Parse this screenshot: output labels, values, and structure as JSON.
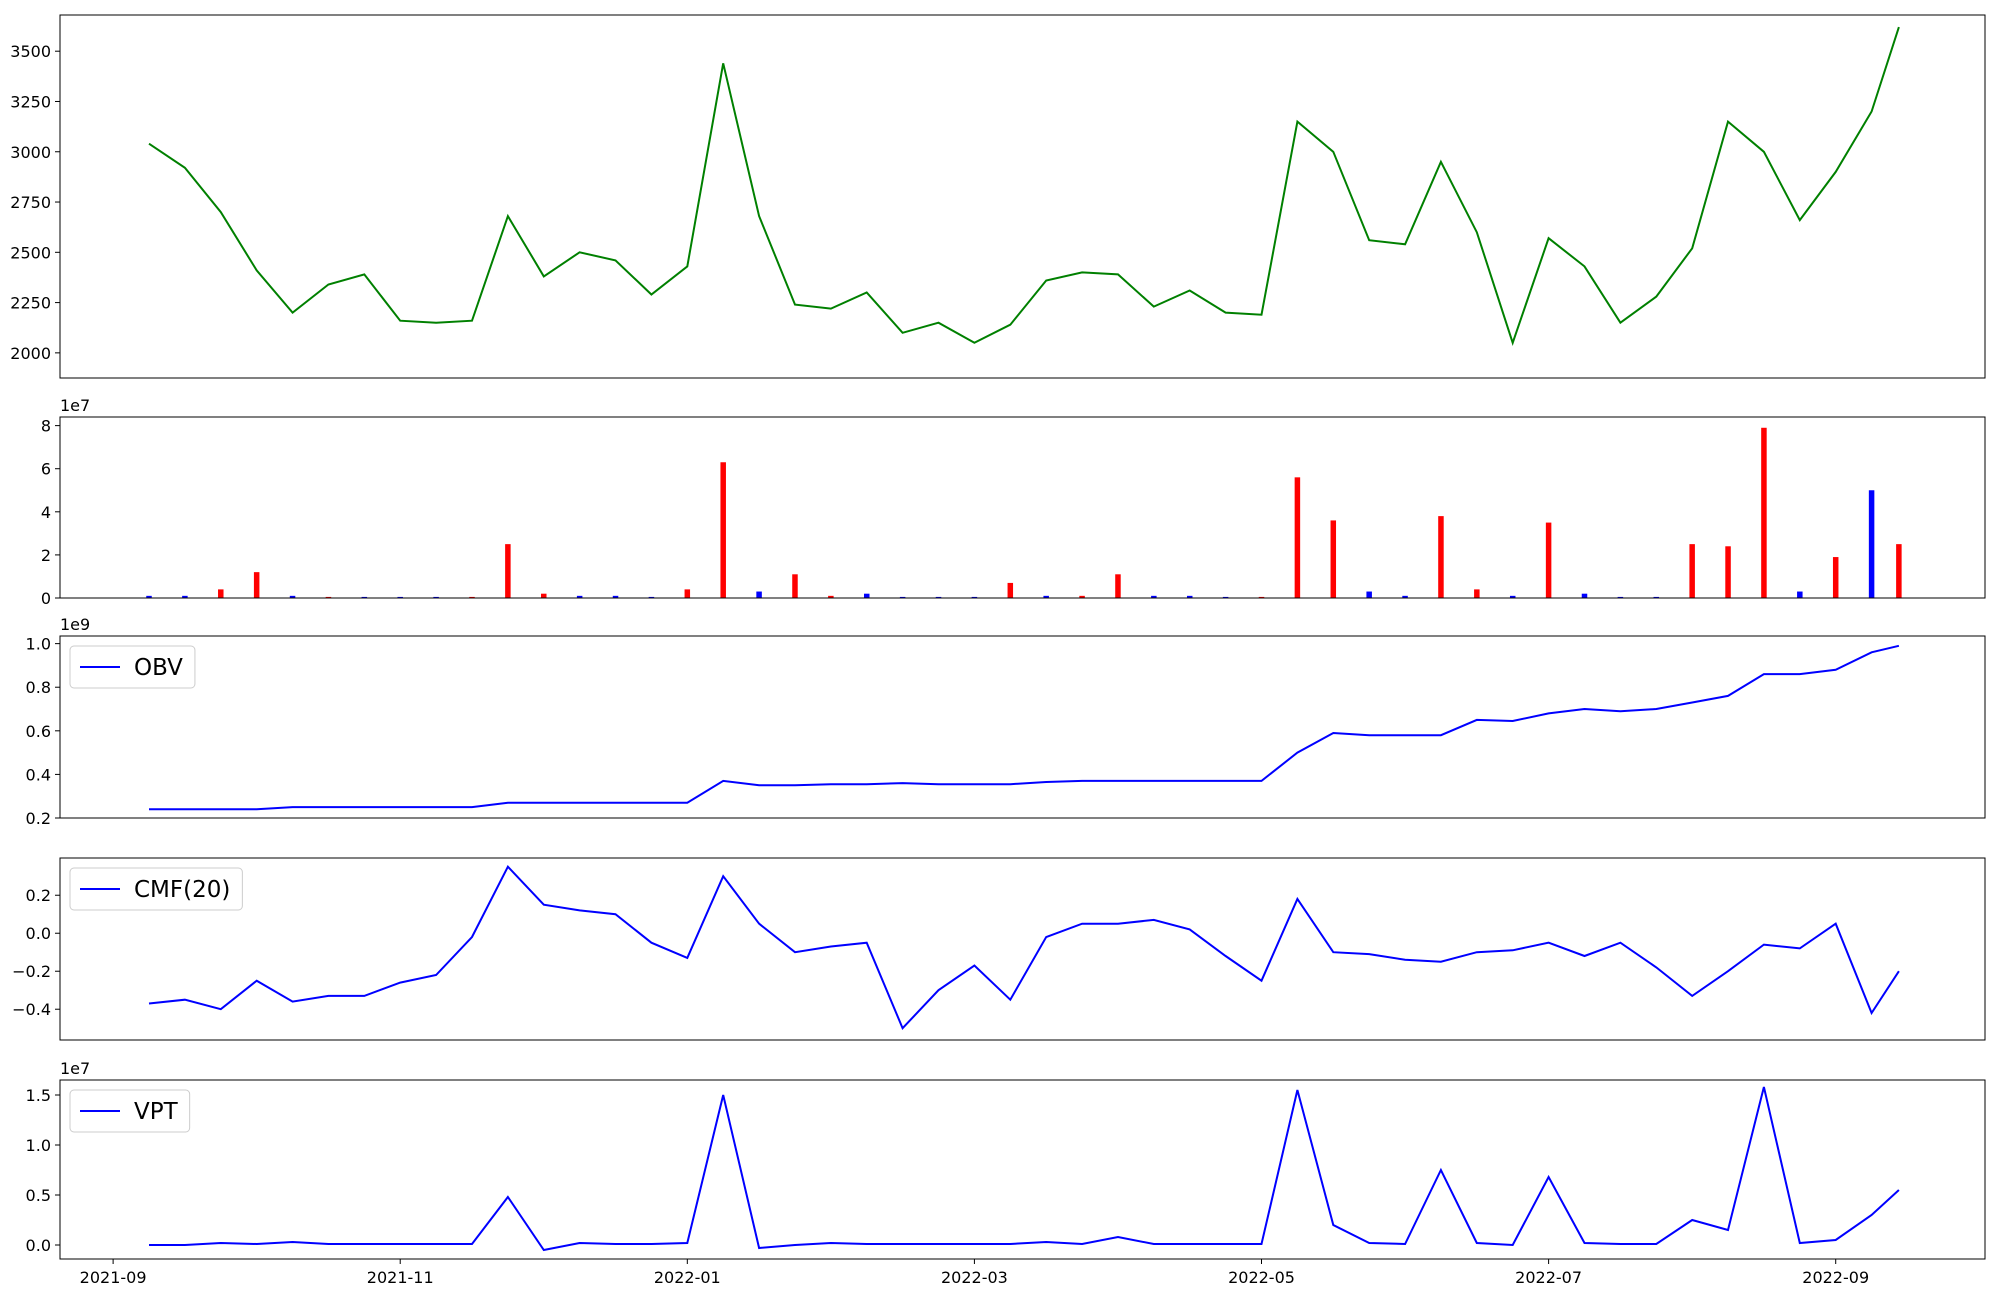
{
  "chart_data": [
    {
      "type": "line",
      "color": "#008000",
      "x": [
        0.25,
        0.5,
        0.75,
        1.0,
        1.25,
        1.5,
        1.75,
        2.0,
        2.25,
        2.5,
        2.75,
        3.0,
        3.25,
        3.5,
        3.75,
        4.0,
        4.25,
        4.5,
        4.75,
        5.0,
        5.25,
        5.5,
        5.75,
        6.0,
        6.25,
        6.5,
        6.75,
        7.0,
        7.25,
        7.5,
        7.75,
        8.0,
        8.25,
        8.5,
        8.75,
        9.0,
        9.25,
        9.5,
        9.75,
        10.0,
        10.25,
        10.5,
        10.75,
        11.0,
        11.25,
        11.5,
        11.75,
        12.0,
        12.25,
        12.44
      ],
      "values": [
        3040,
        2920,
        2700,
        2410,
        2200,
        2340,
        2390,
        2160,
        2150,
        2160,
        2680,
        2380,
        2500,
        2460,
        2290,
        2430,
        3440,
        2680,
        2240,
        2220,
        2300,
        2100,
        2150,
        2050,
        2140,
        2360,
        2400,
        2390,
        2230,
        2310,
        2200,
        2190,
        3150,
        3000,
        2560,
        2540,
        2950,
        2600,
        2050,
        2570,
        2430,
        2150,
        2280,
        2520,
        3150,
        3000,
        2660,
        2900,
        3200,
        3620
      ],
      "xlim": [
        -0.37,
        13.04
      ],
      "ylim": [
        1875,
        3680
      ],
      "yticks": [
        2000,
        2250,
        2500,
        2750,
        3000,
        3250,
        3500
      ]
    },
    {
      "type": "bar",
      "offset_label": "1e7",
      "x": [
        0.25,
        0.5,
        0.75,
        1.0,
        1.25,
        1.5,
        1.75,
        2.0,
        2.25,
        2.5,
        2.75,
        3.0,
        3.25,
        3.5,
        3.75,
        4.0,
        4.25,
        4.5,
        4.75,
        5.0,
        5.25,
        5.5,
        5.75,
        6.0,
        6.25,
        6.5,
        6.75,
        7.0,
        7.25,
        7.5,
        7.75,
        8.0,
        8.25,
        8.5,
        8.75,
        9.0,
        9.25,
        9.5,
        9.75,
        10.0,
        10.25,
        10.5,
        10.75,
        11.0,
        11.25,
        11.5,
        11.75,
        12.0,
        12.25,
        12.44
      ],
      "values": [
        0.1,
        0.1,
        0.4,
        1.2,
        0.1,
        0.05,
        0.05,
        0.05,
        0.05,
        0.05,
        2.5,
        0.2,
        0.1,
        0.1,
        0.05,
        0.4,
        6.3,
        0.3,
        1.1,
        0.1,
        0.2,
        0.05,
        0.05,
        0.05,
        0.7,
        0.1,
        0.1,
        1.1,
        0.1,
        0.1,
        0.05,
        0.05,
        5.6,
        3.6,
        0.3,
        0.1,
        3.8,
        0.4,
        0.1,
        3.5,
        0.2,
        0.05,
        0.05,
        2.5,
        2.4,
        7.9,
        0.3,
        1.9,
        5.0,
        2.5
      ],
      "colors": [
        "#0000ff",
        "#0000ff",
        "#ff0000",
        "#ff0000",
        "#0000ff",
        "#ff0000",
        "#0000ff",
        "#0000ff",
        "#0000ff",
        "#ff0000",
        "#ff0000",
        "#ff0000",
        "#0000ff",
        "#0000ff",
        "#0000ff",
        "#ff0000",
        "#ff0000",
        "#0000ff",
        "#ff0000",
        "#ff0000",
        "#0000ff",
        "#0000ff",
        "#0000ff",
        "#0000ff",
        "#ff0000",
        "#0000ff",
        "#ff0000",
        "#ff0000",
        "#0000ff",
        "#0000ff",
        "#0000ff",
        "#ff0000",
        "#ff0000",
        "#ff0000",
        "#0000ff",
        "#0000ff",
        "#ff0000",
        "#ff0000",
        "#0000ff",
        "#ff0000",
        "#0000ff",
        "#0000ff",
        "#0000ff",
        "#ff0000",
        "#ff0000",
        "#ff0000",
        "#0000ff",
        "#ff0000",
        "#0000ff",
        "#ff0000"
      ],
      "xlim": [
        -0.37,
        13.04
      ],
      "ylim": [
        0,
        8.4
      ],
      "yticks": [
        0,
        2,
        4,
        6,
        8
      ]
    },
    {
      "type": "line",
      "offset_label": "1e9",
      "legend": "upper left",
      "x": [
        0.25,
        0.5,
        0.75,
        1.0,
        1.25,
        1.5,
        1.75,
        2.0,
        2.25,
        2.5,
        2.75,
        3.0,
        3.25,
        3.5,
        3.75,
        4.0,
        4.25,
        4.5,
        4.75,
        5.0,
        5.25,
        5.5,
        5.75,
        6.0,
        6.25,
        6.5,
        6.75,
        7.0,
        7.25,
        7.5,
        7.75,
        8.0,
        8.25,
        8.5,
        8.75,
        9.0,
        9.25,
        9.5,
        9.75,
        10.0,
        10.25,
        10.5,
        10.75,
        11.0,
        11.25,
        11.5,
        11.75,
        12.0,
        12.25,
        12.44
      ],
      "series": [
        {
          "name": "OBV",
          "color": "#0000ff",
          "values": [
            0.24,
            0.24,
            0.24,
            0.24,
            0.25,
            0.25,
            0.25,
            0.25,
            0.25,
            0.25,
            0.27,
            0.27,
            0.27,
            0.27,
            0.27,
            0.27,
            0.37,
            0.35,
            0.35,
            0.355,
            0.355,
            0.36,
            0.355,
            0.355,
            0.355,
            0.365,
            0.37,
            0.37,
            0.37,
            0.37,
            0.37,
            0.37,
            0.5,
            0.59,
            0.58,
            0.58,
            0.58,
            0.65,
            0.645,
            0.68,
            0.7,
            0.69,
            0.7,
            0.73,
            0.76,
            0.86,
            0.86,
            0.88,
            0.96,
            0.99
          ]
        }
      ],
      "xlim": [
        -0.37,
        13.04
      ],
      "ylim": [
        0.2,
        1.035
      ],
      "yticks": [
        0.2,
        0.4,
        0.6,
        0.8,
        {
          "value": 1.0,
          "label": "1.0"
        }
      ]
    },
    {
      "type": "line",
      "legend": "upper left",
      "x": [
        0.25,
        0.5,
        0.75,
        1.0,
        1.25,
        1.5,
        1.75,
        2.0,
        2.25,
        2.5,
        2.75,
        3.0,
        3.25,
        3.5,
        3.75,
        4.0,
        4.25,
        4.5,
        4.75,
        5.0,
        5.25,
        5.5,
        5.75,
        6.0,
        6.25,
        6.5,
        6.75,
        7.0,
        7.25,
        7.5,
        7.75,
        8.0,
        8.25,
        8.5,
        8.75,
        9.0,
        9.25,
        9.5,
        9.75,
        10.0,
        10.25,
        10.5,
        10.75,
        11.0,
        11.25,
        11.5,
        11.75,
        12.0,
        12.25,
        12.44
      ],
      "series": [
        {
          "name": "CMF(20)",
          "color": "#0000ff",
          "values": [
            -0.37,
            -0.35,
            -0.4,
            -0.25,
            -0.36,
            -0.33,
            -0.33,
            -0.26,
            -0.22,
            -0.02,
            0.35,
            0.15,
            0.12,
            0.1,
            -0.05,
            -0.13,
            0.3,
            0.05,
            -0.1,
            -0.07,
            -0.05,
            -0.5,
            -0.3,
            -0.17,
            -0.35,
            -0.02,
            0.05,
            0.05,
            0.07,
            0.02,
            -0.12,
            -0.25,
            0.18,
            -0.1,
            -0.11,
            -0.14,
            -0.15,
            -0.1,
            -0.09,
            -0.05,
            -0.12,
            -0.05,
            -0.18,
            -0.33,
            -0.2,
            -0.06,
            -0.08,
            0.05,
            -0.42,
            -0.2
          ]
        }
      ],
      "xlim": [
        -0.37,
        13.04
      ],
      "ylim": [
        -0.562,
        0.396
      ],
      "yticks": [
        {
          "value": -0.4,
          "label": "−0.4"
        },
        {
          "value": -0.2,
          "label": "−0.2"
        },
        {
          "value": 0,
          "label": "0.0"
        },
        0.2
      ]
    },
    {
      "type": "line",
      "offset_label": "1e7",
      "legend": "upper left",
      "x": [
        0.25,
        0.5,
        0.75,
        1.0,
        1.25,
        1.5,
        1.75,
        2.0,
        2.25,
        2.5,
        2.75,
        3.0,
        3.25,
        3.5,
        3.75,
        4.0,
        4.25,
        4.5,
        4.75,
        5.0,
        5.25,
        5.5,
        5.75,
        6.0,
        6.25,
        6.5,
        6.75,
        7.0,
        7.25,
        7.5,
        7.75,
        8.0,
        8.25,
        8.5,
        8.75,
        9.0,
        9.25,
        9.5,
        9.75,
        10.0,
        10.25,
        10.5,
        10.75,
        11.0,
        11.25,
        11.5,
        11.75,
        12.0,
        12.25,
        12.44
      ],
      "series": [
        {
          "name": "VPT",
          "color": "#0000ff",
          "values": [
            0,
            0,
            0.02,
            0.01,
            0.03,
            0.01,
            0.01,
            0.01,
            0.01,
            0.01,
            0.48,
            -0.05,
            0.02,
            0.01,
            0.01,
            0.02,
            1.5,
            -0.03,
            0,
            0.02,
            0.01,
            0.01,
            0.01,
            0.01,
            0.01,
            0.03,
            0.01,
            0.08,
            0.01,
            0.01,
            0.01,
            0.01,
            1.55,
            0.2,
            0.02,
            0.01,
            0.75,
            0.02,
            0,
            0.68,
            0.02,
            0.01,
            0.01,
            0.25,
            0.15,
            1.58,
            0.02,
            0.05,
            0.3,
            0.55
          ]
        }
      ],
      "xlim": [
        -0.37,
        13.04
      ],
      "ylim": [
        -0.14,
        1.65
      ],
      "yticks": [
        {
          "value": 0,
          "label": "0.0"
        },
        0.5,
        {
          "value": 1.0,
          "label": "1.0"
        },
        1.5
      ],
      "xticks": [
        {
          "value": 0,
          "label": "2021-09"
        },
        {
          "value": 2,
          "label": "2021-11"
        },
        {
          "value": 4,
          "label": "2022-01"
        },
        {
          "value": 6,
          "label": "2022-03"
        },
        {
          "value": 8,
          "label": "2022-05"
        },
        {
          "value": 10,
          "label": "2022-07"
        },
        {
          "value": 12,
          "label": "2022-09"
        }
      ]
    }
  ]
}
